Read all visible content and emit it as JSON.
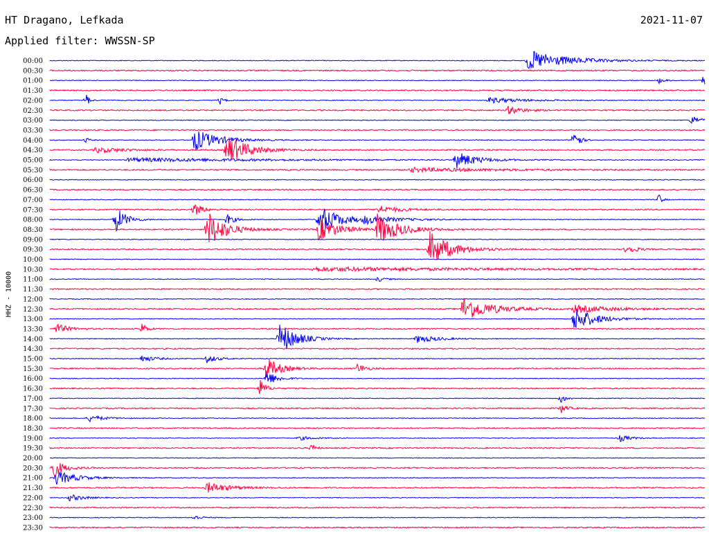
{
  "header": {
    "station": "HT Dragano, Lefkada",
    "filter": "Applied filter: WWSSN-SP",
    "date": "2021-11-07",
    "channel": "HHZ - 10000"
  },
  "colors": {
    "even": "#0000ee",
    "odd": "#ff0040"
  },
  "chart_data": {
    "type": "line",
    "title": "HT Dragano, Lefkada",
    "subtitle": "Applied filter: WWSSN-SP",
    "ylabel": "HHZ - 10000",
    "grid": false,
    "tick_labels": [
      "00:00",
      "00:30",
      "01:00",
      "01:30",
      "02:00",
      "02:30",
      "03:00",
      "03:30",
      "04:00",
      "04:30",
      "05:00",
      "05:30",
      "06:00",
      "06:30",
      "07:00",
      "07:30",
      "08:00",
      "08:30",
      "09:00",
      "09:30",
      "10:00",
      "10:30",
      "11:00",
      "11:30",
      "12:00",
      "12:30",
      "13:00",
      "13:30",
      "14:00",
      "14:30",
      "15:00",
      "15:30",
      "16:00",
      "16:30",
      "17:00",
      "17:30",
      "18:00",
      "18:30",
      "19:00",
      "19:30",
      "20:00",
      "20:30",
      "21:00",
      "21:30",
      "22:00",
      "22:30",
      "23:00",
      "23:30"
    ],
    "row_duration_minutes": 30,
    "events": [
      {
        "row": 0,
        "t": 0.73,
        "amp": 15,
        "w": 0.055
      },
      {
        "row": 2,
        "t": 0.998,
        "amp": 8,
        "w": 0.006
      },
      {
        "row": 2,
        "t": 0.93,
        "amp": 4,
        "w": 0.008
      },
      {
        "row": 4,
        "t": 0.055,
        "amp": 12,
        "w": 0.004
      },
      {
        "row": 4,
        "t": 0.26,
        "amp": 6,
        "w": 0.005
      },
      {
        "row": 4,
        "t": 0.67,
        "amp": 4,
        "w": 0.05
      },
      {
        "row": 5,
        "t": 0.7,
        "amp": 6,
        "w": 0.02
      },
      {
        "row": 6,
        "t": 0.98,
        "amp": 8,
        "w": 0.01
      },
      {
        "row": 8,
        "t": 0.22,
        "amp": 16,
        "w": 0.035
      },
      {
        "row": 8,
        "t": 0.055,
        "amp": 5,
        "w": 0.004
      },
      {
        "row": 8,
        "t": 0.8,
        "amp": 26,
        "w": 0.006
      },
      {
        "row": 9,
        "t": 0.27,
        "amp": 22,
        "w": 0.03
      },
      {
        "row": 9,
        "t": 0.07,
        "amp": 4,
        "w": 0.04
      },
      {
        "row": 10,
        "t": 0.62,
        "amp": 12,
        "w": 0.03
      },
      {
        "row": 10,
        "t": 0.12,
        "amp": 3,
        "w": 0.2
      },
      {
        "row": 11,
        "t": 0.55,
        "amp": 3,
        "w": 0.12
      },
      {
        "row": 14,
        "t": 0.93,
        "amp": 10,
        "w": 0.004
      },
      {
        "row": 15,
        "t": 0.22,
        "amp": 10,
        "w": 0.012
      },
      {
        "row": 15,
        "t": 0.5,
        "amp": 6,
        "w": 0.03
      },
      {
        "row": 16,
        "t": 0.1,
        "amp": 20,
        "w": 0.015
      },
      {
        "row": 16,
        "t": 0.27,
        "amp": 9,
        "w": 0.01
      },
      {
        "row": 16,
        "t": 0.41,
        "amp": 22,
        "w": 0.03
      },
      {
        "row": 16,
        "t": 0.48,
        "amp": 5,
        "w": 0.05
      },
      {
        "row": 17,
        "t": 0.24,
        "amp": 28,
        "w": 0.025
      },
      {
        "row": 17,
        "t": 0.41,
        "amp": 16,
        "w": 0.03
      },
      {
        "row": 17,
        "t": 0.5,
        "amp": 22,
        "w": 0.03
      },
      {
        "row": 19,
        "t": 0.58,
        "amp": 26,
        "w": 0.03
      },
      {
        "row": 19,
        "t": 0.88,
        "amp": 8,
        "w": 0.012
      },
      {
        "row": 21,
        "t": 0.4,
        "amp": 3,
        "w": 0.25
      },
      {
        "row": 22,
        "t": 0.5,
        "amp": 4,
        "w": 0.01
      },
      {
        "row": 25,
        "t": 0.63,
        "amp": 18,
        "w": 0.04
      },
      {
        "row": 25,
        "t": 0.8,
        "amp": 5,
        "w": 0.06
      },
      {
        "row": 26,
        "t": 0.8,
        "amp": 18,
        "w": 0.03
      },
      {
        "row": 27,
        "t": 0.01,
        "amp": 8,
        "w": 0.015
      },
      {
        "row": 27,
        "t": 0.14,
        "amp": 10,
        "w": 0.006
      },
      {
        "row": 28,
        "t": 0.35,
        "amp": 24,
        "w": 0.025
      },
      {
        "row": 28,
        "t": 0.56,
        "amp": 6,
        "w": 0.03
      },
      {
        "row": 30,
        "t": 0.14,
        "amp": 5,
        "w": 0.02
      },
      {
        "row": 30,
        "t": 0.24,
        "amp": 6,
        "w": 0.015
      },
      {
        "row": 31,
        "t": 0.33,
        "amp": 16,
        "w": 0.02
      },
      {
        "row": 31,
        "t": 0.47,
        "amp": 8,
        "w": 0.01
      },
      {
        "row": 32,
        "t": 0.33,
        "amp": 12,
        "w": 0.015
      },
      {
        "row": 33,
        "t": 0.32,
        "amp": 14,
        "w": 0.008
      },
      {
        "row": 34,
        "t": 0.78,
        "amp": 7,
        "w": 0.008
      },
      {
        "row": 35,
        "t": 0.78,
        "amp": 7,
        "w": 0.008
      },
      {
        "row": 36,
        "t": 0.06,
        "amp": 5,
        "w": 0.02
      },
      {
        "row": 38,
        "t": 0.87,
        "amp": 5,
        "w": 0.015
      },
      {
        "row": 38,
        "t": 0.38,
        "amp": 3,
        "w": 0.02
      },
      {
        "row": 39,
        "t": 0.4,
        "amp": 7,
        "w": 0.005
      },
      {
        "row": 41,
        "t": 0.003,
        "amp": 16,
        "w": 0.015
      },
      {
        "row": 42,
        "t": 0.01,
        "amp": 10,
        "w": 0.03
      },
      {
        "row": 43,
        "t": 0.24,
        "amp": 8,
        "w": 0.03
      },
      {
        "row": 44,
        "t": 0.03,
        "amp": 5,
        "w": 0.02
      },
      {
        "row": 46,
        "t": 0.22,
        "amp": 4,
        "w": 0.01
      }
    ]
  }
}
